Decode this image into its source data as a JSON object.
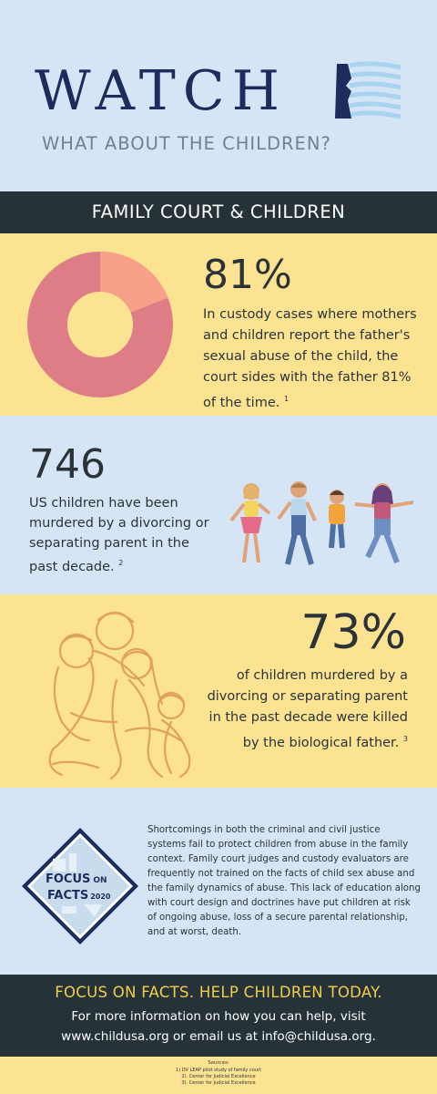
{
  "header": {
    "title": "WATCH",
    "subtitle": "WHAT ABOUT THE CHILDREN?"
  },
  "band": {
    "title": "FAMILY COURT & CHILDREN"
  },
  "stat1": {
    "value": "81%",
    "text": "In custody cases where mothers and children report the father's sexual abuse of the child, the court sides with the father 81% of the time.",
    "ref": "1",
    "donut_fraction": 0.19,
    "colors": {
      "main": "#de7d86",
      "accent": "#f7a08a"
    }
  },
  "stat2": {
    "value": "746",
    "text": "US children have been murdered by a divorcing or separating parent in the past decade.",
    "ref": "2"
  },
  "stat3": {
    "value": "73%",
    "text": "of children murdered by a divorcing or separating parent in the past decade were killed by the biological father.",
    "ref": "3"
  },
  "focus_badge": {
    "line1": "FOCUS",
    "line1b": "ON",
    "line2": "FACTS",
    "year": "2020"
  },
  "paragraph": "Shortcomings in both the criminal and civil justice systems fail to protect children from abuse in the family context. Family court judges and custody evaluators are frequently not trained on the facts of child sex abuse and the family dynamics of abuse.  This lack of education along with court design and doctrines have put children at risk of ongoing abuse, loss of a secure parental relationship, and at worst, death.",
  "footer": {
    "title": "FOCUS ON FACTS.  HELP CHILDREN TODAY.",
    "line1": "For more information on how you can help, visit",
    "line2": "www.childusa.org or email us at info@childusa.org."
  },
  "sources": {
    "heading": "Sources:",
    "items": [
      "1)   DV LEAP pilot study of family court",
      "2). Center for Judicial Excellence",
      "3). Center for Judicial Excellence"
    ]
  }
}
